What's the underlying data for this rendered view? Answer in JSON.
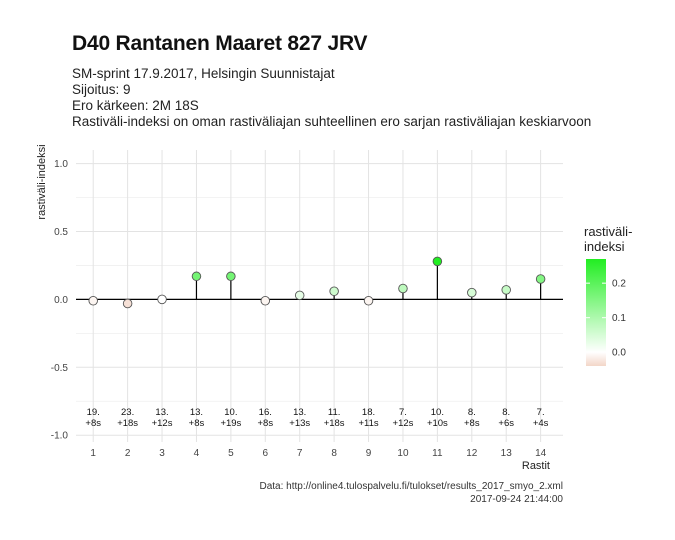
{
  "title": "D40 Rantanen Maaret 827 JRV",
  "subtitles": [
    "SM-sprint 17.9.2017, Helsingin Suunnistajat",
    "Sijoitus: 9",
    "Ero kärkeen: 2M 18S",
    "Rastiväli-indeksi on oman rastiväliajan suhteellinen ero sarjan rastiväliajan keskiarvoon"
  ],
  "caption": {
    "source": "Data: http://online4.tulospalvelu.fi/tulokset/results_2017_smyo_2.xml",
    "timestamp": "2017-09-24 21:44:00"
  },
  "legend": {
    "title_line1": "rastiväli-",
    "title_line2": "indeksi",
    "ticks": [
      "0.2",
      "0.1",
      "0.0"
    ],
    "tick_values": [
      0.2,
      0.1,
      0.0
    ],
    "range": [
      -0.04,
      0.27
    ]
  },
  "colors": {
    "high": "#22ee22",
    "zero": "#ffffff",
    "low": "#f3d6c8",
    "stem": "#000000",
    "grid": "#e3e3e3"
  },
  "chart_data": {
    "type": "scatter",
    "style": "lollipop",
    "xlabel": "Rastit",
    "ylabel": "rastiväli-indeksi",
    "xlim": [
      0.5,
      14.65
    ],
    "ylim": [
      -1.05,
      1.1
    ],
    "yticks": [
      1.0,
      0.5,
      0.0,
      -0.5,
      -1.0
    ],
    "ytick_labels": [
      "1.0",
      "0.5",
      "0.0",
      "-0.5",
      "-1.0"
    ],
    "xticks": [
      1,
      2,
      3,
      4,
      5,
      6,
      7,
      8,
      9,
      10,
      11,
      12,
      13,
      14
    ],
    "x": [
      1,
      2,
      3,
      4,
      5,
      6,
      7,
      8,
      9,
      10,
      11,
      12,
      13,
      14
    ],
    "values": [
      -0.01,
      -0.03,
      0.0,
      0.17,
      0.17,
      -0.01,
      0.03,
      0.06,
      -0.01,
      0.08,
      0.28,
      0.05,
      0.07,
      0.15
    ],
    "annotations": [
      {
        "rank": "19.",
        "time": "+8s"
      },
      {
        "rank": "23.",
        "time": "+18s"
      },
      {
        "rank": "13.",
        "time": "+12s"
      },
      {
        "rank": "13.",
        "time": "+8s"
      },
      {
        "rank": "10.",
        "time": "+19s"
      },
      {
        "rank": "16.",
        "time": "+8s"
      },
      {
        "rank": "13.",
        "time": "+13s"
      },
      {
        "rank": "11.",
        "time": "+18s"
      },
      {
        "rank": "18.",
        "time": "+11s"
      },
      {
        "rank": "7.",
        "time": "+12s"
      },
      {
        "rank": "10.",
        "time": "+10s"
      },
      {
        "rank": "8.",
        "time": "+8s"
      },
      {
        "rank": "8.",
        "time": "+6s"
      },
      {
        "rank": "7.",
        "time": "+4s"
      }
    ],
    "grid": true,
    "legend_position": "right"
  }
}
